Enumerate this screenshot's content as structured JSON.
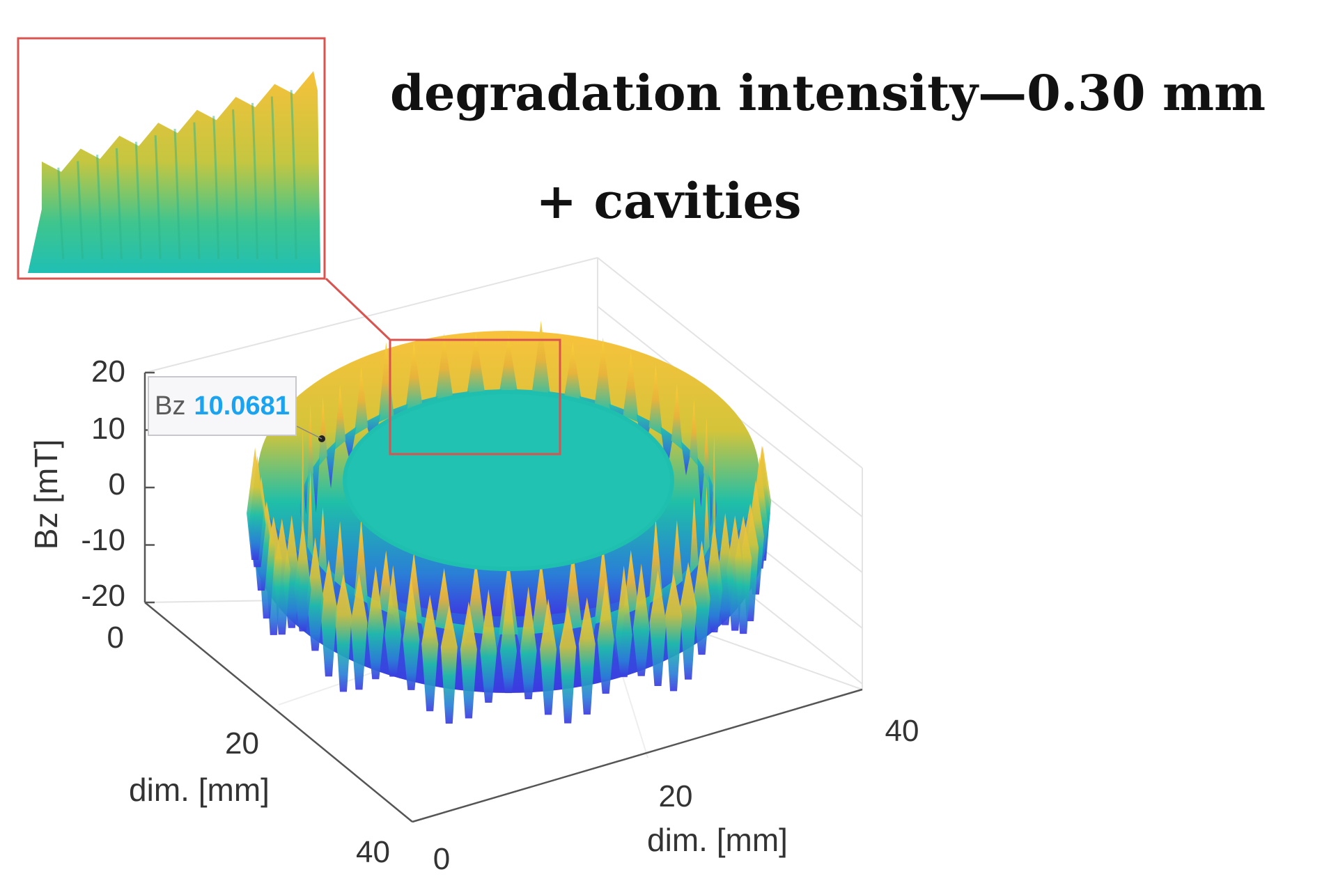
{
  "title": {
    "line1": "degradation intensity—0.30 mm",
    "line2": "+ cavities"
  },
  "colors": {
    "low": "#3b3ae0",
    "mid": "#1fc0b0",
    "high": "#f6b43a",
    "peak": "#f9d038",
    "inset_frame": "#d9534f",
    "grid": "#e3e3e3",
    "datatip_value": "#1aa3f0"
  },
  "chart_data": {
    "type": "surface",
    "description_title": "degradation intensity—0.30 mm + cavities",
    "z_axis": {
      "label": "Bz [mT]",
      "ticks": [
        "20",
        "10",
        "0",
        "-10",
        "-20"
      ],
      "range": [
        -20,
        20
      ]
    },
    "y_axis": {
      "label": "dim. [mm]",
      "ticks": [
        "0",
        "20",
        "40"
      ],
      "range": [
        0,
        40
      ]
    },
    "x_axis": {
      "label": "dim. [mm]",
      "ticks": [
        "0",
        "20",
        "40"
      ],
      "range": [
        0,
        40
      ]
    },
    "datatip": {
      "name": "Bz",
      "value": "10.0681"
    },
    "ring": {
      "center_mm": [
        20,
        20
      ],
      "inner_radius_mm": 10,
      "outer_radius_mm": 16,
      "peak_count": 40,
      "max_bz": 20,
      "min_bz": -20,
      "inner_plateau_bz": 0
    },
    "inset": {
      "content": "zoomed view of peaks on ring rim"
    }
  }
}
